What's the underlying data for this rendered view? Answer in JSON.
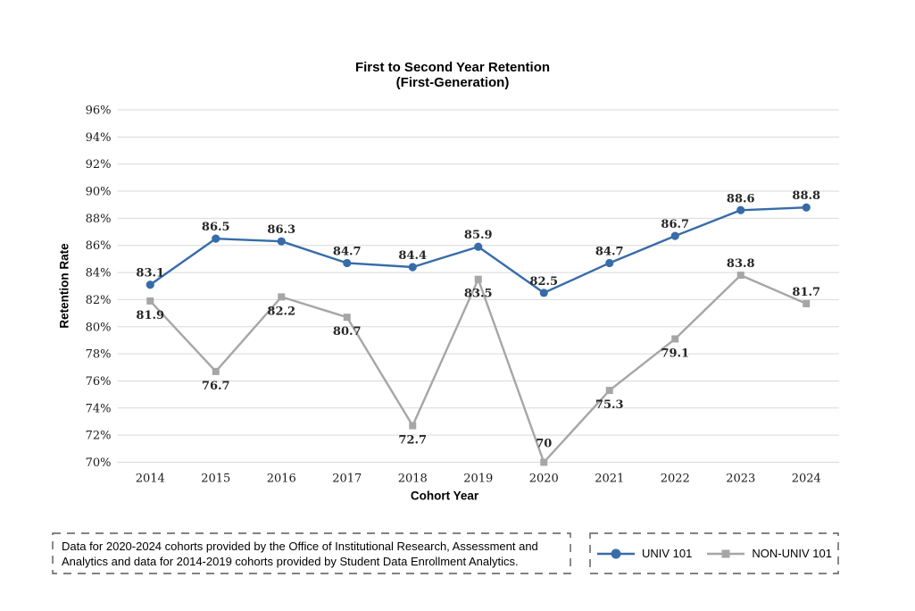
{
  "chart_data": {
    "type": "line",
    "title": [
      "First to Second Year Retention",
      "(First-Generation)"
    ],
    "xlabel": "Cohort Year",
    "ylabel": "Retention Rate",
    "categories": [
      2014,
      2015,
      2016,
      2017,
      2018,
      2019,
      2020,
      2021,
      2022,
      2023,
      2024
    ],
    "y_axis": {
      "min": 70,
      "max": 96,
      "step": 2,
      "tick_suffix": "%"
    },
    "gridline_color": "#d9d9d9",
    "legend_position": "bottom-right-box",
    "series": [
      {
        "name": "UNIV 101",
        "color": "#376ca9",
        "marker": "circle",
        "values": [
          83.1,
          86.5,
          86.3,
          84.7,
          84.4,
          85.9,
          82.5,
          84.7,
          86.7,
          88.6,
          88.8
        ],
        "label_side": [
          "above",
          "above",
          "above",
          "above",
          "above",
          "above",
          "above",
          "above",
          "above",
          "above",
          "above"
        ]
      },
      {
        "name": "NON-UNIV 101",
        "color": "#a6a6a6",
        "marker": "square",
        "values": [
          81.9,
          76.7,
          82.2,
          80.7,
          72.7,
          83.5,
          70,
          75.3,
          79.1,
          83.8,
          81.7
        ],
        "label_side": [
          "below",
          "below",
          "below",
          "below",
          "below",
          "below",
          "above-high",
          "below",
          "below",
          "above",
          "above"
        ]
      }
    ]
  },
  "footnote": {
    "line1": "Data for 2020-2024 cohorts provided by the Office of Institutional Research, Assessment and",
    "line2": "Analytics and data for 2014-2019 cohorts provided by Student Data Enrollment Analytics."
  }
}
